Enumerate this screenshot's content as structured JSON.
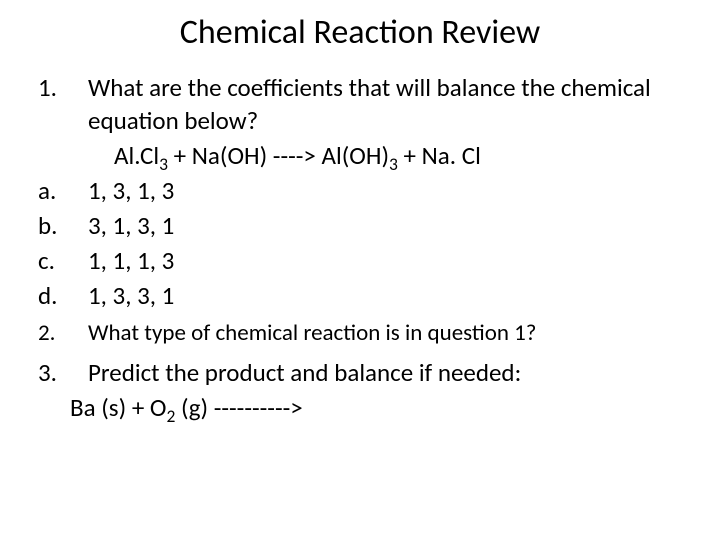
{
  "title": "Chemical Reaction Review",
  "q1": {
    "marker": "1.",
    "text": "What are the coefficients that will balance the chemical equation below?",
    "equation_parts": {
      "p1": "Al.Cl",
      "s1": "3",
      "p2": "  + Na(OH) ---->  Al(OH)",
      "s2": "3",
      "p3": "  + Na. Cl"
    },
    "options": {
      "a": {
        "marker": "a.",
        "text": "1, 3, 1, 3"
      },
      "b": {
        "marker": "b.",
        "text": "3, 1, 3, 1"
      },
      "c": {
        "marker": "c.",
        "text": "1, 1, 1, 3"
      },
      "d": {
        "marker": "d.",
        "text": "1, 3, 3, 1"
      }
    }
  },
  "q2": {
    "marker": "2.",
    "text": "What type of chemical reaction is in question 1?"
  },
  "q3": {
    "marker": "3.",
    "text": "Predict the product and balance if needed:",
    "equation_parts": {
      "p1": "Ba (s)  +  O",
      "s1": "2",
      "p2": " (g)  ---------->"
    }
  },
  "style": {
    "background_color": "#ffffff",
    "text_color": "#000000",
    "title_fontsize": 34,
    "body_fontsize": 25,
    "q2_fontsize": 23,
    "font_family": "Calibri"
  }
}
